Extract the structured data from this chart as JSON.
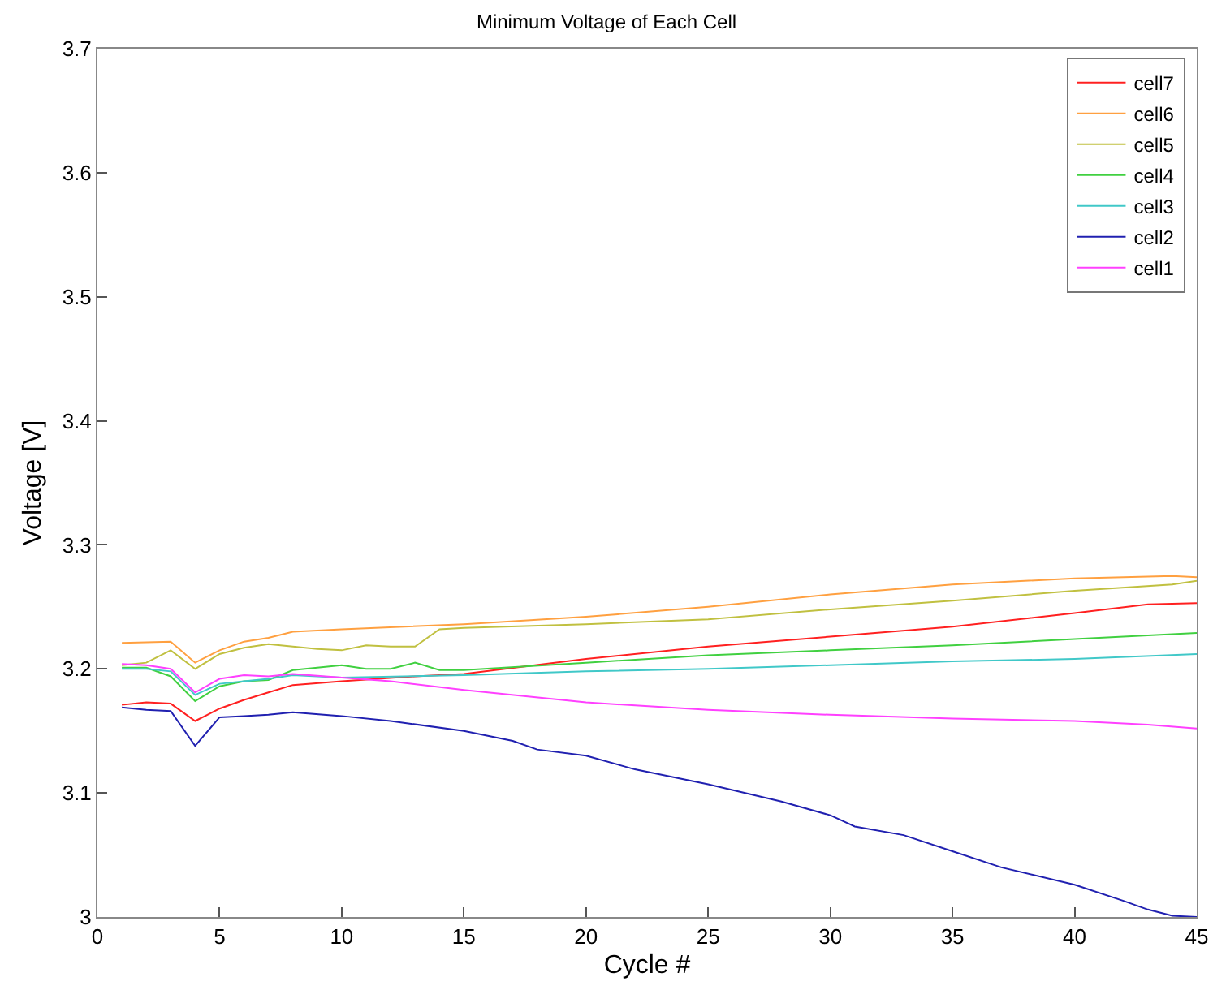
{
  "chart_data": {
    "type": "line",
    "title": "Minimum Voltage of Each Cell",
    "xlabel": "Cycle #",
    "ylabel": "Voltage [V]",
    "xlim": [
      0,
      45
    ],
    "xticks": [
      0,
      5,
      10,
      15,
      20,
      25,
      30,
      35,
      40,
      45
    ],
    "ylim": [
      3,
      3.7
    ],
    "yticks": [
      3,
      3.1,
      3.2,
      3.3,
      3.4,
      3.5,
      3.6,
      3.7
    ],
    "grid": false,
    "legend": "top right",
    "marker": "none",
    "line_style": "solid",
    "series": [
      {
        "name": "cell7",
        "color": "#ff2020",
        "x": [
          1,
          2,
          3,
          4,
          5,
          6,
          7,
          8,
          10,
          13,
          15,
          20,
          25,
          30,
          35,
          40,
          43,
          45
        ],
        "values": [
          3.171,
          3.173,
          3.172,
          3.158,
          3.168,
          3.175,
          3.181,
          3.187,
          3.19,
          3.194,
          3.196,
          3.208,
          3.218,
          3.226,
          3.234,
          3.245,
          3.252,
          3.253
        ]
      },
      {
        "name": "cell6",
        "color": "#ffa040",
        "x": [
          1,
          3,
          4,
          5,
          6,
          7,
          8,
          10,
          15,
          20,
          25,
          30,
          35,
          40,
          44,
          45
        ],
        "values": [
          3.221,
          3.222,
          3.205,
          3.215,
          3.222,
          3.225,
          3.23,
          3.232,
          3.236,
          3.242,
          3.25,
          3.26,
          3.268,
          3.273,
          3.275,
          3.274
        ]
      },
      {
        "name": "cell5",
        "color": "#c0c040",
        "x": [
          1,
          2,
          3,
          4,
          5,
          6,
          7,
          8,
          9,
          10,
          11,
          12,
          13,
          14,
          15,
          20,
          25,
          30,
          35,
          40,
          44,
          45
        ],
        "values": [
          3.203,
          3.205,
          3.215,
          3.2,
          3.212,
          3.217,
          3.22,
          3.218,
          3.216,
          3.215,
          3.219,
          3.218,
          3.218,
          3.232,
          3.233,
          3.236,
          3.24,
          3.248,
          3.255,
          3.263,
          3.268,
          3.271
        ]
      },
      {
        "name": "cell4",
        "color": "#40d040",
        "x": [
          1,
          2,
          3,
          4,
          5,
          6,
          7,
          8,
          10,
          11,
          12,
          13,
          14,
          15,
          20,
          25,
          30,
          35,
          40,
          45
        ],
        "values": [
          3.201,
          3.201,
          3.194,
          3.174,
          3.186,
          3.19,
          3.191,
          3.199,
          3.203,
          3.2,
          3.2,
          3.205,
          3.199,
          3.199,
          3.205,
          3.211,
          3.215,
          3.219,
          3.224,
          3.229
        ]
      },
      {
        "name": "cell3",
        "color": "#40c8c8",
        "x": [
          1,
          2,
          3,
          4,
          5,
          6,
          7,
          8,
          10,
          15,
          20,
          25,
          30,
          35,
          40,
          45
        ],
        "values": [
          3.2,
          3.2,
          3.198,
          3.179,
          3.188,
          3.19,
          3.192,
          3.195,
          3.193,
          3.195,
          3.198,
          3.2,
          3.203,
          3.206,
          3.208,
          3.212
        ]
      },
      {
        "name": "cell2",
        "color": "#2020b0",
        "x": [
          1,
          2,
          3,
          4,
          5,
          6,
          7,
          8,
          10,
          12,
          15,
          17,
          18,
          20,
          22,
          25,
          28,
          30,
          31,
          33,
          35,
          37,
          40,
          42,
          43,
          44,
          45
        ],
        "values": [
          3.169,
          3.167,
          3.166,
          3.138,
          3.161,
          3.162,
          3.163,
          3.165,
          3.162,
          3.158,
          3.15,
          3.142,
          3.135,
          3.13,
          3.119,
          3.107,
          3.093,
          3.082,
          3.073,
          3.066,
          3.053,
          3.04,
          3.026,
          3.013,
          3.006,
          3.001,
          3.0
        ]
      },
      {
        "name": "cell1",
        "color": "#ff40ff",
        "x": [
          1,
          2,
          3,
          4,
          5,
          6,
          7,
          8,
          10,
          12,
          15,
          20,
          25,
          30,
          35,
          40,
          43,
          45
        ],
        "values": [
          3.204,
          3.203,
          3.2,
          3.181,
          3.192,
          3.195,
          3.194,
          3.196,
          3.193,
          3.19,
          3.183,
          3.173,
          3.167,
          3.163,
          3.16,
          3.158,
          3.155,
          3.152
        ]
      }
    ]
  }
}
